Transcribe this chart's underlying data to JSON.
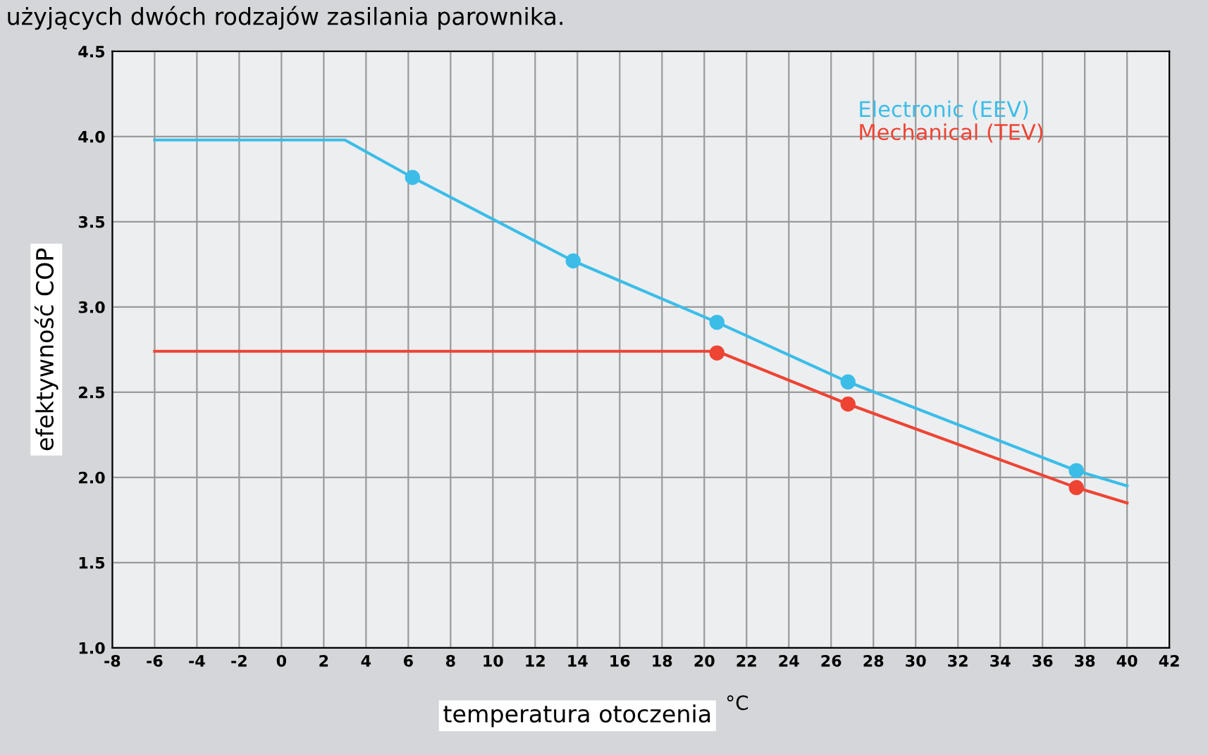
{
  "chart_data": {
    "type": "line",
    "title": "użyjących dwóch rodzajów zasilania parownika.",
    "xlabel": "temperatura otoczenia",
    "ylabel": "efektywność COP",
    "annotations": [
      "°C"
    ],
    "series": [
      {
        "name": "Electronic (EEV)",
        "color": "#3bbde8",
        "x": [
          -6,
          3,
          6.2,
          13.8,
          20.6,
          26.8,
          37.6,
          40
        ],
        "values": [
          3.98,
          3.98,
          3.76,
          3.27,
          2.91,
          2.56,
          2.04,
          1.95
        ],
        "marker": "none"
      },
      {
        "name": "Mechanical (TEV)",
        "color": "#ee4433",
        "x": [
          -6,
          20.6,
          26.8,
          37.6,
          40
        ],
        "values": [
          2.74,
          2.74,
          2.43,
          1.94,
          1.85
        ],
        "marker": "none"
      },
      {
        "type": "scatter",
        "color": "#3bbde8",
        "x": [
          6.2,
          13.8,
          20.6,
          26.8,
          37.6
        ],
        "values": [
          3.76,
          3.27,
          2.91,
          2.56,
          2.04
        ],
        "marker": "circle"
      },
      {
        "type": "scatter",
        "color": "#ee4433",
        "x": [
          20.6,
          26.8,
          37.6
        ],
        "values": [
          2.73,
          2.43,
          1.94
        ],
        "marker": "circle"
      }
    ],
    "xlim": [
      -8,
      42
    ],
    "xticks": [
      -8,
      -6,
      -4,
      -2,
      0,
      2,
      4,
      6,
      8,
      10,
      12,
      14,
      16,
      18,
      20,
      22,
      24,
      26,
      28,
      30,
      32,
      34,
      36,
      38,
      40,
      42
    ],
    "ylim": [
      1.0,
      4.5
    ],
    "yticks": [
      {
        "value": 1.0,
        "label": "1.0"
      },
      {
        "value": 1.5,
        "label": "1.5"
      },
      {
        "value": 2.0,
        "label": "2.0"
      },
      {
        "value": 2.5,
        "label": "2.5"
      },
      {
        "value": 3.0,
        "label": "3.0"
      },
      {
        "value": 3.5,
        "label": "3.5"
      },
      {
        "value": 4.0,
        "label": "4.0"
      },
      {
        "value": 4.5,
        "label": "4.5"
      }
    ],
    "grid": true,
    "legend": "top right",
    "line_style": "solid"
  }
}
